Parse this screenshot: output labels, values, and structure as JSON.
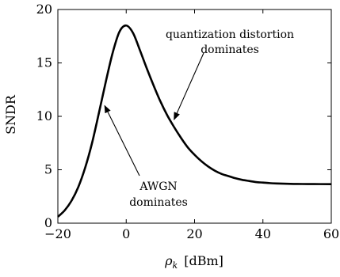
{
  "chart_data": {
    "type": "line",
    "xlabel_symbol": "ρ",
    "xlabel_subscript": "k",
    "xlabel_unit": "[dBm]",
    "ylabel": "SNDR",
    "xlim": [
      -20,
      60
    ],
    "ylim": [
      0,
      20
    ],
    "xticks": [
      -20,
      0,
      20,
      40,
      60
    ],
    "yticks": [
      0,
      5,
      10,
      15,
      20
    ],
    "xtick_labels": [
      "−20",
      "0",
      "20",
      "40",
      "60"
    ],
    "ytick_labels": [
      "0",
      "5",
      "10",
      "15",
      "20"
    ],
    "grid": false,
    "series": [
      {
        "color": "#000000",
        "x": [
          -20,
          -18,
          -16,
          -14,
          -12,
          -10,
          -8,
          -6,
          -4,
          -2,
          0,
          2,
          4,
          6,
          8,
          10,
          12,
          14,
          16,
          18,
          20,
          22,
          24,
          26,
          28,
          30,
          32,
          34,
          36,
          38,
          40,
          42,
          44,
          46,
          48,
          50,
          55,
          60
        ],
        "y": [
          0.6,
          1.2,
          2.1,
          3.4,
          5.2,
          7.5,
          10.3,
          13.2,
          15.9,
          17.9,
          18.5,
          17.8,
          16.2,
          14.5,
          12.9,
          11.4,
          10.1,
          9.0,
          8.0,
          7.1,
          6.4,
          5.8,
          5.3,
          4.9,
          4.6,
          4.4,
          4.2,
          4.05,
          3.95,
          3.85,
          3.8,
          3.75,
          3.72,
          3.7,
          3.68,
          3.67,
          3.66,
          3.65
        ]
      }
    ],
    "annotations": [
      {
        "lines": [
          "quantization distortion",
          "dominates"
        ],
        "arrow_to": [
          14,
          9.7
        ]
      },
      {
        "lines": [
          "AWGN",
          "dominates"
        ],
        "arrow_to": [
          -6.3,
          11
        ]
      }
    ]
  }
}
